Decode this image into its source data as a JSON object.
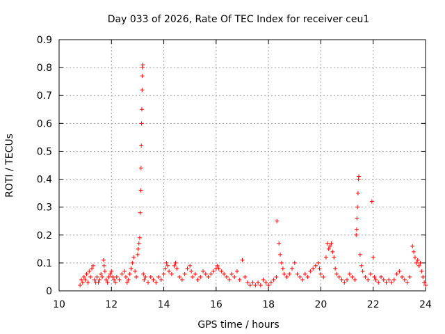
{
  "chart_data": {
    "type": "scatter",
    "title": "Day 033 of 2026, Rate Of TEC Index for receiver ceu1",
    "xlabel": "GPS time / hours",
    "ylabel": "ROTI / TECUs",
    "xlim": [
      10,
      24
    ],
    "ylim": [
      0,
      0.9
    ],
    "xticks": [
      10,
      12,
      14,
      16,
      18,
      20,
      22,
      24
    ],
    "yticks": [
      0,
      0.1,
      0.2,
      0.3,
      0.4,
      0.5,
      0.6,
      0.7,
      0.8,
      0.9
    ],
    "grid": true,
    "marker": "+",
    "color": "#ff0000",
    "series": [
      {
        "points": [
          [
            10.8,
            0.02
          ],
          [
            10.85,
            0.04
          ],
          [
            10.9,
            0.03
          ],
          [
            10.95,
            0.05
          ],
          [
            11.0,
            0.04
          ],
          [
            11.05,
            0.06
          ],
          [
            11.1,
            0.03
          ],
          [
            11.15,
            0.07
          ],
          [
            11.2,
            0.05
          ],
          [
            11.25,
            0.08
          ],
          [
            11.3,
            0.09
          ],
          [
            11.35,
            0.04
          ],
          [
            11.4,
            0.03
          ],
          [
            11.45,
            0.05
          ],
          [
            11.5,
            0.03
          ],
          [
            11.55,
            0.04
          ],
          [
            11.6,
            0.06
          ],
          [
            11.65,
            0.05
          ],
          [
            11.7,
            0.11
          ],
          [
            11.72,
            0.09
          ],
          [
            11.75,
            0.07
          ],
          [
            11.8,
            0.04
          ],
          [
            11.85,
            0.03
          ],
          [
            11.9,
            0.05
          ],
          [
            11.95,
            0.06
          ],
          [
            12.0,
            0.07
          ],
          [
            12.05,
            0.05
          ],
          [
            12.1,
            0.04
          ],
          [
            12.15,
            0.03
          ],
          [
            12.2,
            0.05
          ],
          [
            12.3,
            0.04
          ],
          [
            12.4,
            0.06
          ],
          [
            12.5,
            0.07
          ],
          [
            12.55,
            0.05
          ],
          [
            12.6,
            0.03
          ],
          [
            12.65,
            0.04
          ],
          [
            12.7,
            0.06
          ],
          [
            12.75,
            0.08
          ],
          [
            12.8,
            0.1
          ],
          [
            12.85,
            0.12
          ],
          [
            12.9,
            0.07
          ],
          [
            12.95,
            0.05
          ],
          [
            13.0,
            0.13
          ],
          [
            13.02,
            0.15
          ],
          [
            13.05,
            0.17
          ],
          [
            13.08,
            0.19
          ],
          [
            13.1,
            0.28
          ],
          [
            13.12,
            0.36
          ],
          [
            13.13,
            0.44
          ],
          [
            13.14,
            0.52
          ],
          [
            13.15,
            0.6
          ],
          [
            13.16,
            0.65
          ],
          [
            13.17,
            0.72
          ],
          [
            13.18,
            0.77
          ],
          [
            13.19,
            0.8
          ],
          [
            13.2,
            0.81
          ],
          [
            13.22,
            0.06
          ],
          [
            13.25,
            0.04
          ],
          [
            13.3,
            0.05
          ],
          [
            13.4,
            0.03
          ],
          [
            13.5,
            0.05
          ],
          [
            13.6,
            0.04
          ],
          [
            13.7,
            0.03
          ],
          [
            13.8,
            0.05
          ],
          [
            13.9,
            0.04
          ],
          [
            14.0,
            0.06
          ],
          [
            14.05,
            0.08
          ],
          [
            14.1,
            0.1
          ],
          [
            14.15,
            0.09
          ],
          [
            14.2,
            0.07
          ],
          [
            14.3,
            0.06
          ],
          [
            14.4,
            0.09
          ],
          [
            14.45,
            0.1
          ],
          [
            14.5,
            0.08
          ],
          [
            14.6,
            0.05
          ],
          [
            14.7,
            0.04
          ],
          [
            14.8,
            0.06
          ],
          [
            14.9,
            0.08
          ],
          [
            15.0,
            0.09
          ],
          [
            15.05,
            0.07
          ],
          [
            15.1,
            0.05
          ],
          [
            15.2,
            0.06
          ],
          [
            15.3,
            0.04
          ],
          [
            15.4,
            0.05
          ],
          [
            15.5,
            0.07
          ],
          [
            15.6,
            0.06
          ],
          [
            15.7,
            0.05
          ],
          [
            15.8,
            0.06
          ],
          [
            15.9,
            0.07
          ],
          [
            16.0,
            0.08
          ],
          [
            16.05,
            0.09
          ],
          [
            16.1,
            0.08
          ],
          [
            16.2,
            0.07
          ],
          [
            16.3,
            0.06
          ],
          [
            16.4,
            0.05
          ],
          [
            16.5,
            0.04
          ],
          [
            16.6,
            0.06
          ],
          [
            16.7,
            0.05
          ],
          [
            16.8,
            0.07
          ],
          [
            16.9,
            0.04
          ],
          [
            17.0,
            0.11
          ],
          [
            17.1,
            0.05
          ],
          [
            17.2,
            0.03
          ],
          [
            17.3,
            0.02
          ],
          [
            17.4,
            0.03
          ],
          [
            17.5,
            0.02
          ],
          [
            17.6,
            0.03
          ],
          [
            17.7,
            0.02
          ],
          [
            17.8,
            0.04
          ],
          [
            17.9,
            0.03
          ],
          [
            18.0,
            0.02
          ],
          [
            18.1,
            0.03
          ],
          [
            18.2,
            0.04
          ],
          [
            18.3,
            0.05
          ],
          [
            18.32,
            0.25
          ],
          [
            18.4,
            0.17
          ],
          [
            18.45,
            0.13
          ],
          [
            18.5,
            0.1
          ],
          [
            18.55,
            0.08
          ],
          [
            18.6,
            0.06
          ],
          [
            18.7,
            0.05
          ],
          [
            18.8,
            0.06
          ],
          [
            18.9,
            0.08
          ],
          [
            19.0,
            0.1
          ],
          [
            19.1,
            0.06
          ],
          [
            19.2,
            0.05
          ],
          [
            19.3,
            0.04
          ],
          [
            19.4,
            0.06
          ],
          [
            19.5,
            0.05
          ],
          [
            19.6,
            0.07
          ],
          [
            19.7,
            0.08
          ],
          [
            19.8,
            0.09
          ],
          [
            19.9,
            0.1
          ],
          [
            19.95,
            0.08
          ],
          [
            20.0,
            0.06
          ],
          [
            20.1,
            0.05
          ],
          [
            20.2,
            0.12
          ],
          [
            20.25,
            0.17
          ],
          [
            20.3,
            0.15
          ],
          [
            20.35,
            0.16
          ],
          [
            20.4,
            0.17
          ],
          [
            20.45,
            0.14
          ],
          [
            20.5,
            0.12
          ],
          [
            20.55,
            0.08
          ],
          [
            20.6,
            0.06
          ],
          [
            20.7,
            0.05
          ],
          [
            20.8,
            0.04
          ],
          [
            20.9,
            0.03
          ],
          [
            21.0,
            0.04
          ],
          [
            21.1,
            0.06
          ],
          [
            21.2,
            0.05
          ],
          [
            21.3,
            0.04
          ],
          [
            21.35,
            0.2
          ],
          [
            21.37,
            0.22
          ],
          [
            21.38,
            0.26
          ],
          [
            21.4,
            0.3
          ],
          [
            21.42,
            0.35
          ],
          [
            21.44,
            0.4
          ],
          [
            21.45,
            0.41
          ],
          [
            21.5,
            0.13
          ],
          [
            21.55,
            0.09
          ],
          [
            21.6,
            0.07
          ],
          [
            21.7,
            0.05
          ],
          [
            21.8,
            0.04
          ],
          [
            21.9,
            0.06
          ],
          [
            21.95,
            0.32
          ],
          [
            22.0,
            0.12
          ],
          [
            22.05,
            0.05
          ],
          [
            22.1,
            0.04
          ],
          [
            22.2,
            0.03
          ],
          [
            22.3,
            0.05
          ],
          [
            22.4,
            0.04
          ],
          [
            22.5,
            0.03
          ],
          [
            22.6,
            0.04
          ],
          [
            22.7,
            0.03
          ],
          [
            22.8,
            0.04
          ],
          [
            22.9,
            0.06
          ],
          [
            23.0,
            0.07
          ],
          [
            23.1,
            0.05
          ],
          [
            23.2,
            0.04
          ],
          [
            23.3,
            0.03
          ],
          [
            23.4,
            0.05
          ],
          [
            23.5,
            0.16
          ],
          [
            23.55,
            0.14
          ],
          [
            23.6,
            0.12
          ],
          [
            23.65,
            0.1
          ],
          [
            23.7,
            0.11
          ],
          [
            23.75,
            0.09
          ],
          [
            23.8,
            0.1
          ],
          [
            23.85,
            0.07
          ],
          [
            23.9,
            0.05
          ],
          [
            23.95,
            0.03
          ],
          [
            24.0,
            0.02
          ]
        ]
      }
    ]
  }
}
